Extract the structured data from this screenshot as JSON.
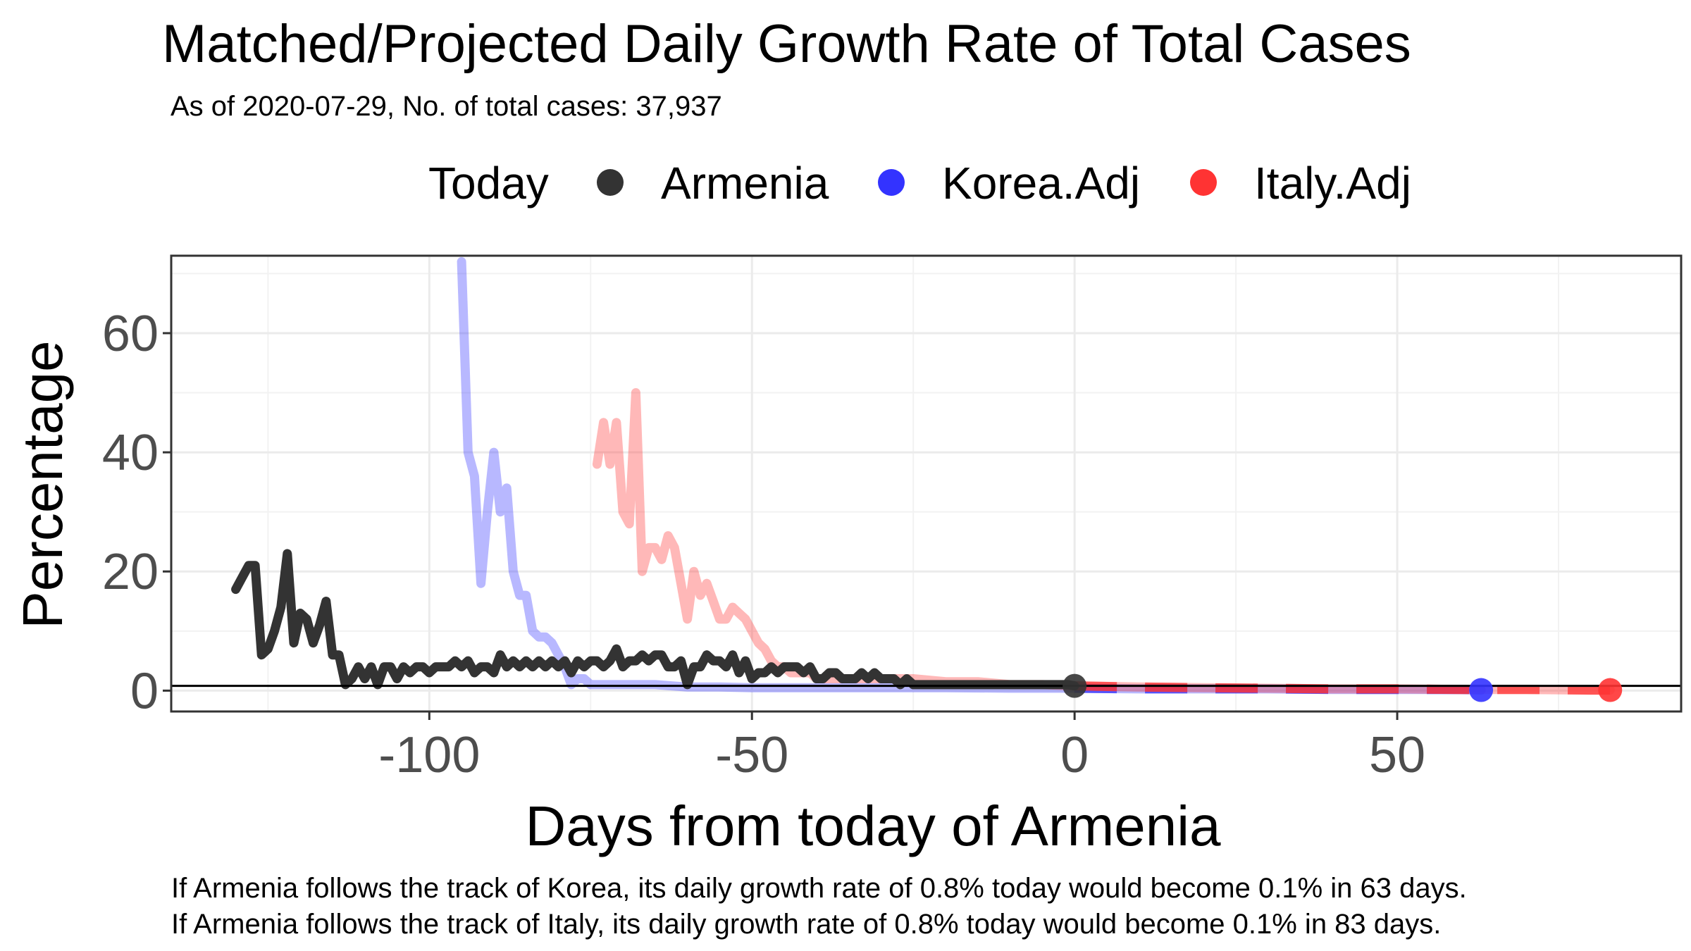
{
  "chart_data": {
    "type": "line",
    "title": "Matched/Projected Daily Growth Rate of Total Cases",
    "subtitle": "As of 2020-07-29, No. of total cases: 37,937",
    "xlabel": "Days from today of Armenia",
    "ylabel": "Percentage",
    "xlim": [
      -140,
      94
    ],
    "ylim": [
      -3.5,
      73
    ],
    "xticks": [
      -100,
      -50,
      0,
      50
    ],
    "xtick_labels": [
      "-100",
      "-50",
      "0",
      "50"
    ],
    "yticks": [
      0,
      20,
      40,
      60
    ],
    "ytick_labels": [
      "0",
      "20",
      "40",
      "60"
    ],
    "hline": 0.8,
    "grid": true,
    "legend": {
      "position": "top",
      "title": "Today",
      "entries": [
        {
          "label": "Armenia",
          "color": "#333333"
        },
        {
          "label": "Korea.Adj",
          "color": "#3333ff"
        },
        {
          "label": "Italy.Adj",
          "color": "#ff3333"
        }
      ]
    },
    "series": [
      {
        "name": "Armenia",
        "color": "#333333",
        "x": [
          -130,
          -129,
          -128,
          -127,
          -126,
          -125,
          -124,
          -123,
          -122,
          -121,
          -120,
          -119,
          -118,
          -117,
          -116,
          -115,
          -114,
          -113,
          -112,
          -111,
          -110,
          -109,
          -108,
          -107,
          -106,
          -105,
          -104,
          -103,
          -102,
          -101,
          -100,
          -99,
          -98,
          -97,
          -96,
          -95,
          -94,
          -93,
          -92,
          -91,
          -90,
          -89,
          -88,
          -87,
          -86,
          -85,
          -84,
          -83,
          -82,
          -81,
          -80,
          -79,
          -78,
          -77,
          -76,
          -75,
          -74,
          -73,
          -72,
          -71,
          -70,
          -69,
          -68,
          -67,
          -66,
          -65,
          -64,
          -63,
          -62,
          -61,
          -60,
          -59,
          -58,
          -57,
          -56,
          -55,
          -54,
          -53,
          -52,
          -51,
          -50,
          -49,
          -48,
          -47,
          -46,
          -45,
          -44,
          -43,
          -42,
          -41,
          -40,
          -39,
          -38,
          -37,
          -36,
          -35,
          -34,
          -33,
          -32,
          -31,
          -30,
          -29,
          -28,
          -27,
          -26,
          -25,
          -24,
          -23,
          -22,
          -21,
          -20,
          -19,
          -18,
          -17,
          -16,
          -15,
          -14,
          -13,
          -12,
          -11,
          -10,
          -9,
          -8,
          -7,
          -6,
          -5,
          -4,
          -3,
          -2,
          -1,
          0
        ],
        "values": [
          17,
          19,
          21,
          21,
          6,
          7,
          10,
          14,
          23,
          8,
          13,
          12,
          8,
          11,
          15,
          6,
          6,
          1,
          2,
          4,
          2,
          4,
          1,
          4,
          4,
          2,
          4,
          3,
          4,
          4,
          3,
          4,
          4,
          4,
          5,
          4,
          5,
          3,
          4,
          4,
          3,
          6,
          4,
          5,
          4,
          5,
          4,
          5,
          4,
          5,
          4,
          5,
          3,
          5,
          4,
          5,
          5,
          4,
          5,
          7,
          4,
          5,
          5,
          6,
          5,
          6,
          6,
          4,
          4,
          5,
          1,
          4,
          4,
          6,
          5,
          5,
          4,
          6,
          3,
          5,
          2,
          3,
          3,
          4,
          3,
          4,
          4,
          4,
          3,
          4,
          2,
          2,
          3,
          3,
          2,
          2,
          2,
          3,
          2,
          3,
          2,
          2,
          2,
          1,
          2,
          1,
          1,
          1,
          1,
          1,
          1,
          1,
          1,
          1,
          1,
          1,
          1,
          1,
          1,
          1,
          1,
          1,
          1,
          1,
          1,
          1,
          1,
          1,
          1,
          1,
          0.8
        ]
      },
      {
        "name": "Korea.Adj",
        "color": "#3333ff",
        "x": [
          -95,
          -94,
          -93,
          -92,
          -91,
          -90,
          -89,
          -88,
          -87,
          -86,
          -85,
          -84,
          -83,
          -82,
          -81,
          -80,
          -79,
          -78,
          -77,
          -76,
          -75,
          -70,
          -65,
          -60,
          -55,
          -50,
          -40,
          -30,
          -20,
          -10,
          0,
          10,
          20,
          30,
          40,
          50,
          60,
          63
        ],
        "values": [
          72,
          40,
          36,
          18,
          30,
          40,
          30,
          34,
          20,
          16,
          16,
          10,
          9,
          9,
          8,
          6,
          4,
          1,
          2,
          2,
          1,
          1,
          1,
          0.6,
          0.6,
          0.5,
          0.5,
          0.5,
          0.5,
          0.4,
          0.4,
          0.3,
          0.3,
          0.3,
          0.2,
          0.2,
          0.2,
          0.1
        ]
      },
      {
        "name": "Italy.Adj",
        "color": "#ff3333",
        "x": [
          -74,
          -73,
          -72,
          -71,
          -70,
          -69,
          -68,
          -67,
          -66,
          -65,
          -64,
          -63,
          -62,
          -61,
          -60,
          -59,
          -58,
          -57,
          -56,
          -55,
          -54,
          -53,
          -52,
          -51,
          -50,
          -49,
          -48,
          -47,
          -46,
          -45,
          -44,
          -43,
          -42,
          -41,
          -40,
          -35,
          -30,
          -25,
          -20,
          -15,
          -10,
          -5,
          0,
          10,
          20,
          30,
          40,
          50,
          60,
          70,
          80,
          83
        ],
        "values": [
          38,
          45,
          38,
          45,
          30,
          28,
          50,
          20,
          24,
          24,
          22,
          26,
          24,
          18,
          12,
          20,
          16,
          18,
          15,
          12,
          12,
          14,
          13,
          12,
          10,
          8,
          7,
          5,
          4,
          4,
          3,
          3,
          3,
          3,
          2,
          2,
          2,
          2,
          1.5,
          1.5,
          1,
          1,
          0.8,
          0.6,
          0.5,
          0.4,
          0.3,
          0.3,
          0.2,
          0.2,
          0.1,
          0.1
        ]
      }
    ],
    "today_points": [
      {
        "name": "Armenia",
        "x": 0,
        "y": 0.8,
        "color": "#333333"
      },
      {
        "name": "Korea.Adj",
        "x": 63,
        "y": 0.1,
        "color": "#3333ff"
      },
      {
        "name": "Italy.Adj",
        "x": 83,
        "y": 0.1,
        "color": "#ff3333"
      }
    ],
    "captions": [
      "If Armenia follows the track of Korea, its daily growth rate of 0.8% today would become 0.1% in 63 days.",
      "If Armenia follows the track of Italy, its daily growth rate of 0.8% today would become 0.1% in 83 days."
    ]
  }
}
